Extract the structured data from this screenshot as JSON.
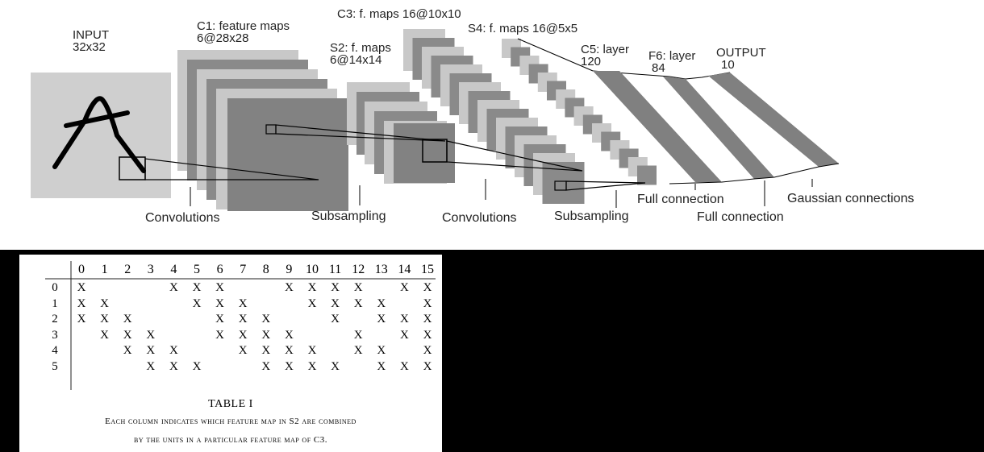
{
  "diagram": {
    "input_label": [
      "INPUT",
      "32x32"
    ],
    "c1_label": [
      "C1: feature maps",
      "6@28x28"
    ],
    "s2_label": [
      "S2: f. maps",
      "6@14x14"
    ],
    "c3_label": "C3: f. maps 16@10x10",
    "s4_label": "S4: f. maps 16@5x5",
    "c5_label": [
      "C5: layer",
      "120"
    ],
    "f6_label": [
      "F6: layer",
      "84"
    ],
    "output_label": [
      "OUTPUT",
      "10"
    ],
    "stages": [
      "Convolutions",
      "Subsampling",
      "Convolutions",
      "Subsampling",
      "Full connection",
      "Full connection",
      "Gaussian connections"
    ]
  },
  "table": {
    "columns": [
      "0",
      "1",
      "2",
      "3",
      "4",
      "5",
      "6",
      "7",
      "8",
      "9",
      "10",
      "11",
      "12",
      "13",
      "14",
      "15"
    ],
    "rows": [
      {
        "label": "0",
        "cells": [
          "X",
          "",
          "",
          "",
          "X",
          "X",
          "X",
          "",
          "",
          "X",
          "X",
          "X",
          "X",
          "",
          "X",
          "X"
        ]
      },
      {
        "label": "1",
        "cells": [
          "X",
          "X",
          "",
          "",
          "",
          "X",
          "X",
          "X",
          "",
          "",
          "X",
          "X",
          "X",
          "X",
          "",
          "X"
        ]
      },
      {
        "label": "2",
        "cells": [
          "X",
          "X",
          "X",
          "",
          "",
          "",
          "X",
          "X",
          "X",
          "",
          "",
          "X",
          "",
          "X",
          "X",
          "X"
        ]
      },
      {
        "label": "3",
        "cells": [
          "",
          "X",
          "X",
          "X",
          "",
          "",
          "X",
          "X",
          "X",
          "X",
          "",
          "",
          "X",
          "",
          "X",
          "X"
        ]
      },
      {
        "label": "4",
        "cells": [
          "",
          "",
          "X",
          "X",
          "X",
          "",
          "",
          "X",
          "X",
          "X",
          "X",
          "",
          "X",
          "X",
          "",
          "X"
        ]
      },
      {
        "label": "5",
        "cells": [
          "",
          "",
          "",
          "X",
          "X",
          "X",
          "",
          "",
          "X",
          "X",
          "X",
          "X",
          "",
          "X",
          "X",
          "X"
        ]
      }
    ],
    "title": "TABLE I",
    "caption": [
      "Each column indicates which feature map in S2 are combined",
      "by the units in a particular feature map of C3."
    ]
  }
}
